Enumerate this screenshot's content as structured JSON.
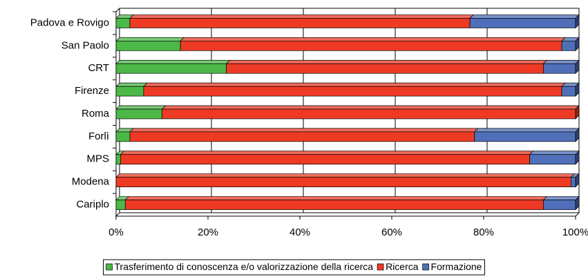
{
  "chart_data": {
    "type": "stacked_barh",
    "categories": [
      "Padova e Rovigo",
      "San Paolo",
      "CRT",
      "Firenze",
      "Roma",
      "Forlì",
      "MPS",
      "Modena",
      "Cariplo"
    ],
    "series": [
      {
        "name": "Trasferimento di conoscenza e/o valorizzazione della ricerca",
        "color": "#4cb848",
        "values": [
          3,
          14,
          24,
          6,
          10,
          3,
          1,
          0,
          2
        ]
      },
      {
        "name": "Ricerca",
        "color": "#ee3a24",
        "values": [
          74,
          83,
          69,
          91,
          90,
          75,
          89,
          99,
          91
        ]
      },
      {
        "name": "Formazione",
        "color": "#4f6fb9",
        "values": [
          23,
          3,
          7,
          3,
          0,
          22,
          10,
          1,
          7
        ]
      }
    ],
    "xlim": [
      0,
      100
    ],
    "xticks": [
      {
        "value": 0,
        "label": "0%"
      },
      {
        "value": 20,
        "label": "20%"
      },
      {
        "value": 40,
        "label": "40%"
      },
      {
        "value": 60,
        "label": "60%"
      },
      {
        "value": 80,
        "label": "80%"
      },
      {
        "value": 100,
        "label": "100%"
      }
    ],
    "grid": true,
    "legend": "bottom"
  }
}
